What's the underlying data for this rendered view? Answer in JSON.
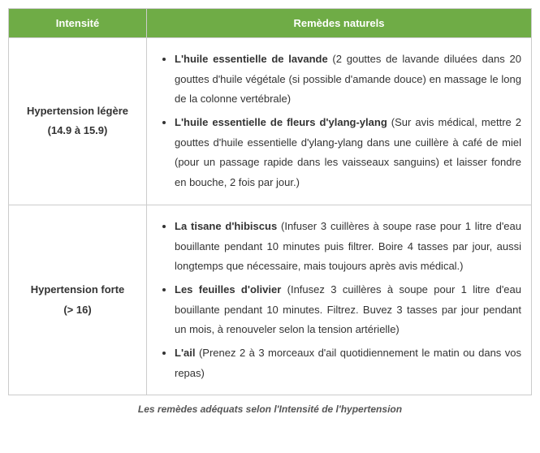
{
  "table": {
    "header_bg": "#6fac46",
    "header_color": "#ffffff",
    "border_color": "#cccccc",
    "columns": [
      {
        "label": "Intensité",
        "width": 170
      },
      {
        "label": "Remèdes naturels"
      }
    ],
    "rows": [
      {
        "intensity": {
          "title": "Hypertension légère",
          "range": "(14.9 à 15.9)"
        },
        "remedies": [
          {
            "name": "L'huile essentielle de lavande",
            "detail": " (2 gouttes de lavande diluées dans 20 gouttes d'huile végétale (si possible d'amande douce) en massage le long de la colonne vertébrale)"
          },
          {
            "name": "L'huile essentielle de fleurs d'ylang-ylang",
            "detail": " (Sur avis médical, mettre 2 gouttes d'huile essentielle d'ylang-ylang dans une cuillère à café de miel (pour un passage rapide dans les vaisseaux sanguins) et laisser fondre en bouche, 2 fois par jour.)"
          }
        ]
      },
      {
        "intensity": {
          "title": "Hypertension forte",
          "range": "(> 16)"
        },
        "remedies": [
          {
            "name": "La tisane d'hibiscus",
            "detail": " (Infuser 3 cuillères à soupe rase pour 1 litre d'eau bouillante pendant 10 minutes puis filtrer. Boire 4 tasses par jour, aussi longtemps que nécessaire, mais toujours après avis médical.)"
          },
          {
            "name": "Les feuilles d'olivier",
            "detail": " (Infusez 3 cuillères à soupe pour 1 litre d'eau bouillante pendant 10 minutes. Filtrez. Buvez 3 tasses par jour pendant un mois, à renouveler selon la tension artérielle)"
          },
          {
            "name": "L'ail",
            "detail": " (Prenez 2 à 3 morceaux d'ail quotidiennement le matin ou dans vos repas)"
          }
        ]
      }
    ]
  },
  "caption": "Les remèdes adéquats selon l'Intensité de l'hypertension"
}
